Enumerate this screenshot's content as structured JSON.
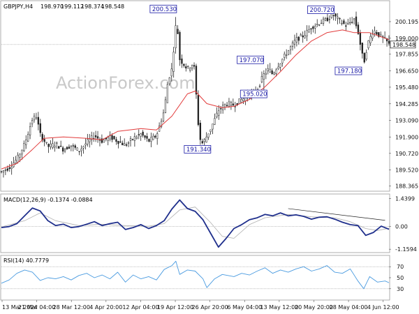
{
  "chart_data": {
    "type": "candlestick",
    "symbol_label": "GBPJPY,H4",
    "ohlc": [
      "198.970",
      "199.112",
      "198.374",
      "198.548"
    ],
    "watermark": "ActionForex.com",
    "price_axis": {
      "ticks": [
        "200.195",
        "199.000",
        "197.855",
        "196.650",
        "195.480",
        "194.285",
        "193.090",
        "191.900",
        "190.720",
        "189.520",
        "188.365"
      ],
      "range": [
        188.1,
        201.6
      ],
      "current_price": "198.548"
    },
    "x_ticks": [
      "13 Mar 2024",
      "21 Mar 04:00",
      "28 Mar 12:00",
      "4 Apr 20:00",
      "12 Apr 04:00",
      "19 Apr 12:00",
      "26 Apr 20:00",
      "6 May 04:00",
      "13 May 12:00",
      "20 May 20:00",
      "28 May 04:00",
      "4 Jun 12:00"
    ],
    "annotations": [
      {
        "text": "200.530",
        "price": 200.53,
        "at": 0.452
      },
      {
        "text": "191.340",
        "price": 191.34,
        "at": 0.515
      },
      {
        "text": "197.070",
        "price": 197.07,
        "at": 0.675
      },
      {
        "text": "195.020",
        "price": 195.02,
        "at": 0.678
      },
      {
        "text": "200.720",
        "price": 200.72,
        "at": 0.855
      },
      {
        "text": "197.180",
        "price": 197.18,
        "at": 0.935
      }
    ],
    "price_path": [
      [
        0.0,
        189.4
      ],
      [
        0.02,
        189.7
      ],
      [
        0.04,
        190.3
      ],
      [
        0.06,
        191.4
      ],
      [
        0.08,
        193.2
      ],
      [
        0.09,
        193.4
      ],
      [
        0.1,
        192.1
      ],
      [
        0.12,
        191.2
      ],
      [
        0.14,
        191.4
      ],
      [
        0.16,
        191.0
      ],
      [
        0.18,
        191.3
      ],
      [
        0.2,
        190.9
      ],
      [
        0.22,
        191.5
      ],
      [
        0.24,
        192.0
      ],
      [
        0.26,
        191.6
      ],
      [
        0.28,
        191.9
      ],
      [
        0.3,
        191.6
      ],
      [
        0.32,
        191.3
      ],
      [
        0.34,
        191.8
      ],
      [
        0.36,
        192.1
      ],
      [
        0.38,
        191.6
      ],
      [
        0.4,
        192.0
      ],
      [
        0.42,
        193.8
      ],
      [
        0.43,
        196.0
      ],
      [
        0.44,
        196.8
      ],
      [
        0.452,
        200.53
      ],
      [
        0.46,
        197.5
      ],
      [
        0.48,
        196.8
      ],
      [
        0.495,
        197.2
      ],
      [
        0.5,
        196.5
      ],
      [
        0.505,
        193.5
      ],
      [
        0.515,
        191.34
      ],
      [
        0.525,
        191.7
      ],
      [
        0.54,
        192.5
      ],
      [
        0.56,
        193.8
      ],
      [
        0.58,
        194.3
      ],
      [
        0.6,
        194.2
      ],
      [
        0.62,
        194.6
      ],
      [
        0.64,
        194.9
      ],
      [
        0.66,
        195.3
      ],
      [
        0.675,
        196.3
      ],
      [
        0.69,
        196.8
      ],
      [
        0.7,
        196.4
      ],
      [
        0.71,
        196.9
      ],
      [
        0.72,
        197.3
      ],
      [
        0.74,
        198.1
      ],
      [
        0.76,
        198.9
      ],
      [
        0.78,
        199.2
      ],
      [
        0.8,
        199.8
      ],
      [
        0.82,
        200.1
      ],
      [
        0.84,
        200.35
      ],
      [
        0.855,
        200.72
      ],
      [
        0.87,
        200.3
      ],
      [
        0.89,
        199.9
      ],
      [
        0.91,
        200.4
      ],
      [
        0.92,
        199.5
      ],
      [
        0.935,
        197.18
      ],
      [
        0.945,
        198.6
      ],
      [
        0.96,
        199.6
      ],
      [
        0.975,
        199.2
      ],
      [
        0.99,
        198.9
      ],
      [
        1.0,
        198.548
      ]
    ],
    "ma_path": [
      [
        0.0,
        189.6
      ],
      [
        0.04,
        190.0
      ],
      [
        0.08,
        191.0
      ],
      [
        0.11,
        191.8
      ],
      [
        0.16,
        191.9
      ],
      [
        0.22,
        191.8
      ],
      [
        0.26,
        191.7
      ],
      [
        0.3,
        192.3
      ],
      [
        0.36,
        192.5
      ],
      [
        0.4,
        192.4
      ],
      [
        0.44,
        193.4
      ],
      [
        0.48,
        195.0
      ],
      [
        0.5,
        195.2
      ],
      [
        0.53,
        194.3
      ],
      [
        0.57,
        194.0
      ],
      [
        0.6,
        194.1
      ],
      [
        0.64,
        194.6
      ],
      [
        0.68,
        195.5
      ],
      [
        0.72,
        196.6
      ],
      [
        0.76,
        197.8
      ],
      [
        0.8,
        198.8
      ],
      [
        0.84,
        199.4
      ],
      [
        0.88,
        199.6
      ],
      [
        0.91,
        199.4
      ],
      [
        0.95,
        199.4
      ],
      [
        1.0,
        198.9
      ]
    ],
    "macd": {
      "label": "MACD(12,26,9) -0.1374 -0.0884",
      "ticks": [
        "1.4399",
        "0.00",
        "-1.1594"
      ],
      "range": [
        -1.26,
        1.56
      ],
      "macd_path": [
        [
          0.0,
          -0.05
        ],
        [
          0.02,
          -0.0
        ],
        [
          0.04,
          0.15
        ],
        [
          0.06,
          0.55
        ],
        [
          0.08,
          0.95
        ],
        [
          0.1,
          0.8
        ],
        [
          0.12,
          0.3
        ],
        [
          0.14,
          0.05
        ],
        [
          0.16,
          0.12
        ],
        [
          0.18,
          -0.05
        ],
        [
          0.2,
          0.0
        ],
        [
          0.22,
          0.12
        ],
        [
          0.24,
          0.25
        ],
        [
          0.26,
          0.05
        ],
        [
          0.28,
          0.15
        ],
        [
          0.3,
          0.22
        ],
        [
          0.32,
          -0.15
        ],
        [
          0.34,
          -0.05
        ],
        [
          0.36,
          0.1
        ],
        [
          0.38,
          -0.1
        ],
        [
          0.4,
          0.05
        ],
        [
          0.42,
          0.3
        ],
        [
          0.44,
          0.9
        ],
        [
          0.46,
          1.36
        ],
        [
          0.48,
          0.92
        ],
        [
          0.5,
          0.78
        ],
        [
          0.52,
          0.35
        ],
        [
          0.54,
          -0.35
        ],
        [
          0.56,
          -1.05
        ],
        [
          0.58,
          -0.6
        ],
        [
          0.6,
          -0.1
        ],
        [
          0.62,
          0.1
        ],
        [
          0.64,
          0.35
        ],
        [
          0.66,
          0.45
        ],
        [
          0.68,
          0.62
        ],
        [
          0.7,
          0.55
        ],
        [
          0.72,
          0.7
        ],
        [
          0.74,
          0.55
        ],
        [
          0.76,
          0.6
        ],
        [
          0.78,
          0.52
        ],
        [
          0.8,
          0.38
        ],
        [
          0.82,
          0.48
        ],
        [
          0.84,
          0.5
        ],
        [
          0.86,
          0.38
        ],
        [
          0.88,
          0.22
        ],
        [
          0.9,
          0.1
        ],
        [
          0.92,
          0.05
        ],
        [
          0.94,
          -0.45
        ],
        [
          0.96,
          -0.3
        ],
        [
          0.98,
          0.02
        ],
        [
          1.0,
          -0.14
        ]
      ],
      "signal_path": [
        [
          0.0,
          -0.02
        ],
        [
          0.06,
          0.3
        ],
        [
          0.1,
          0.7
        ],
        [
          0.14,
          0.3
        ],
        [
          0.2,
          0.05
        ],
        [
          0.26,
          0.12
        ],
        [
          0.32,
          0.05
        ],
        [
          0.38,
          0.02
        ],
        [
          0.42,
          0.15
        ],
        [
          0.46,
          0.85
        ],
        [
          0.5,
          1.0
        ],
        [
          0.54,
          0.2
        ],
        [
          0.57,
          -0.5
        ],
        [
          0.6,
          -0.6
        ],
        [
          0.64,
          0.1
        ],
        [
          0.68,
          0.45
        ],
        [
          0.74,
          0.62
        ],
        [
          0.8,
          0.5
        ],
        [
          0.86,
          0.45
        ],
        [
          0.9,
          0.25
        ],
        [
          0.94,
          -0.1
        ],
        [
          0.97,
          -0.2
        ],
        [
          1.0,
          -0.09
        ]
      ],
      "trendline": [
        [
          0.74,
          0.92
        ],
        [
          0.99,
          0.32
        ]
      ]
    },
    "rsi": {
      "label": "RSI(14) 40.7779",
      "ticks": [
        "70",
        "50",
        "30"
      ],
      "range": [
        12,
        88
      ],
      "path": [
        [
          0.0,
          40
        ],
        [
          0.02,
          46
        ],
        [
          0.04,
          58
        ],
        [
          0.06,
          64
        ],
        [
          0.08,
          60
        ],
        [
          0.1,
          45
        ],
        [
          0.12,
          50
        ],
        [
          0.14,
          48
        ],
        [
          0.16,
          52
        ],
        [
          0.18,
          46
        ],
        [
          0.2,
          54
        ],
        [
          0.22,
          58
        ],
        [
          0.24,
          50
        ],
        [
          0.26,
          55
        ],
        [
          0.28,
          48
        ],
        [
          0.3,
          60
        ],
        [
          0.32,
          42
        ],
        [
          0.34,
          55
        ],
        [
          0.36,
          48
        ],
        [
          0.38,
          52
        ],
        [
          0.4,
          46
        ],
        [
          0.42,
          65
        ],
        [
          0.44,
          72
        ],
        [
          0.45,
          80
        ],
        [
          0.46,
          56
        ],
        [
          0.48,
          64
        ],
        [
          0.5,
          62
        ],
        [
          0.52,
          48
        ],
        [
          0.53,
          32
        ],
        [
          0.55,
          48
        ],
        [
          0.57,
          56
        ],
        [
          0.6,
          52
        ],
        [
          0.62,
          58
        ],
        [
          0.64,
          55
        ],
        [
          0.66,
          62
        ],
        [
          0.68,
          68
        ],
        [
          0.7,
          58
        ],
        [
          0.72,
          64
        ],
        [
          0.74,
          60
        ],
        [
          0.76,
          66
        ],
        [
          0.78,
          70
        ],
        [
          0.8,
          62
        ],
        [
          0.82,
          66
        ],
        [
          0.84,
          72
        ],
        [
          0.86,
          60
        ],
        [
          0.88,
          58
        ],
        [
          0.9,
          66
        ],
        [
          0.92,
          44
        ],
        [
          0.935,
          30
        ],
        [
          0.95,
          52
        ],
        [
          0.97,
          42
        ],
        [
          0.99,
          44
        ],
        [
          1.0,
          41
        ]
      ]
    }
  }
}
